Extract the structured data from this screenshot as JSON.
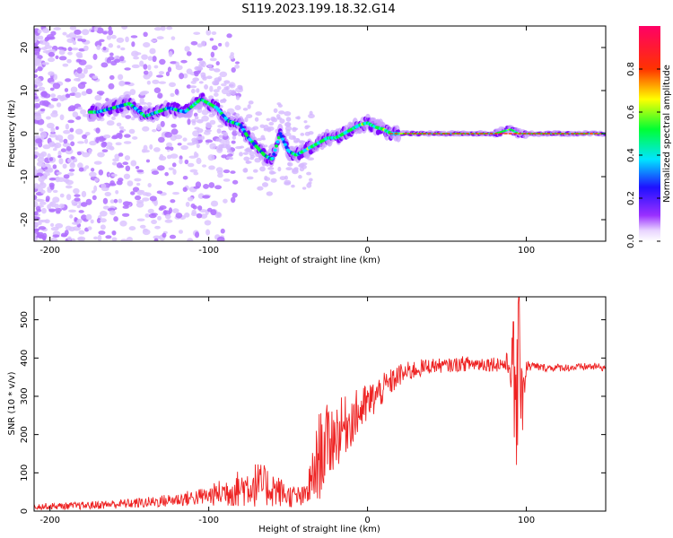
{
  "title": "S119.2023.199.18.32.G14",
  "chart_data": [
    {
      "type": "heatmap",
      "xlabel": "Height of straight line (km)",
      "ylabel": "Frequency (Hz)",
      "xlim": [
        -210,
        150
      ],
      "ylim": [
        -25,
        25
      ],
      "x_ticks": [
        -200,
        -100,
        0,
        100
      ],
      "y_ticks": [
        -20,
        -10,
        0,
        10,
        20
      ],
      "colorbar": {
        "label": "Normalized spectral amplitude",
        "range": [
          0,
          1
        ],
        "ticks": [
          "0.0",
          "0.2",
          "0.4",
          "0.6",
          "0.8"
        ],
        "colormap": [
          "#ffffff",
          "#7a00ff",
          "#0033ff",
          "#00e5ff",
          "#00ff33",
          "#ffff00",
          "#ff3300",
          "#ff0066"
        ]
      },
      "ridge": {
        "x": [
          -170,
          -150,
          -140,
          -125,
          -115,
          -105,
          -95,
          -88,
          -80,
          -75,
          -70,
          -65,
          -60,
          -55,
          -50,
          -45,
          -40,
          -35,
          -30,
          -25,
          -20,
          -15,
          -10,
          -5,
          0,
          5,
          10,
          15,
          20,
          40,
          60,
          80,
          85,
          90,
          95,
          100,
          120,
          150
        ],
        "y": [
          5,
          7,
          4,
          6,
          5,
          8,
          6,
          3,
          2,
          -1,
          -3,
          -5,
          -6,
          0,
          -4,
          -5,
          -4,
          -3,
          -2,
          -1,
          -1,
          0,
          1,
          2,
          2.5,
          1.5,
          1,
          0,
          0,
          0,
          0,
          0,
          0.5,
          1,
          0,
          0,
          0,
          0
        ]
      }
    },
    {
      "type": "line",
      "xlabel": "Height of straight line (km)",
      "ylabel": "SNR (10 * v/v)",
      "xlim": [
        -210,
        150
      ],
      "ylim": [
        0,
        560
      ],
      "x_ticks": [
        -200,
        -100,
        0,
        100
      ],
      "y_ticks": [
        0,
        100,
        200,
        300,
        400,
        500
      ],
      "color": "#ee2222",
      "envelope": {
        "x": [
          -210,
          -180,
          -160,
          -140,
          -120,
          -100,
          -90,
          -80,
          -70,
          -60,
          -50,
          -40,
          -35,
          -30,
          -25,
          -20,
          -10,
          0,
          10,
          20,
          30,
          40,
          50,
          60,
          70,
          80,
          85,
          90,
          92,
          94,
          96,
          98,
          100,
          110,
          120,
          130,
          140,
          150
        ],
        "mean": [
          12,
          14,
          18,
          22,
          30,
          40,
          50,
          60,
          70,
          60,
          40,
          35,
          80,
          150,
          180,
          200,
          240,
          280,
          320,
          355,
          370,
          380,
          380,
          385,
          385,
          385,
          385,
          380,
          330,
          300,
          420,
          330,
          380,
          375,
          375,
          375,
          378,
          375
        ],
        "amp": [
          8,
          10,
          12,
          14,
          18,
          25,
          40,
          50,
          60,
          50,
          30,
          30,
          70,
          120,
          100,
          90,
          70,
          55,
          40,
          30,
          25,
          20,
          18,
          20,
          20,
          20,
          22,
          40,
          200,
          250,
          150,
          200,
          15,
          10,
          10,
          10,
          10,
          10
        ]
      }
    }
  ]
}
